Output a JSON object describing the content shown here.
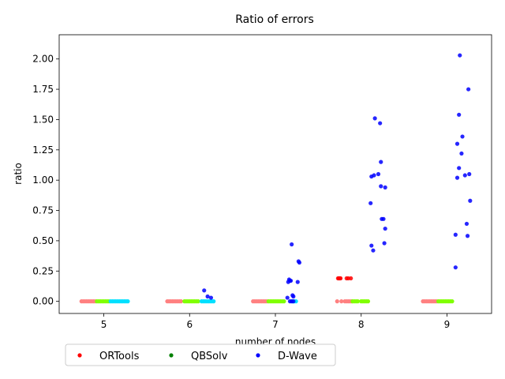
{
  "chart_data": {
    "type": "scatter",
    "title": "Ratio of errors",
    "xlabel": "number of nodes",
    "ylabel": "ratio",
    "xlim": [
      4.48,
      9.52
    ],
    "ylim": [
      -0.1,
      2.2
    ],
    "xticks": [
      5,
      6,
      7,
      8,
      9
    ],
    "yticks": [
      0.0,
      0.25,
      0.5,
      0.75,
      1.0,
      1.25,
      1.5,
      1.75,
      2.0
    ],
    "xtick_labels": [
      "5",
      "6",
      "7",
      "8",
      "9"
    ],
    "ytick_labels": [
      "0.00",
      "0.25",
      "0.50",
      "0.75",
      "1.00",
      "1.25",
      "1.50",
      "1.75",
      "2.00"
    ],
    "grid": false,
    "legend_position": "below",
    "series": [
      {
        "name": "ORTools",
        "color": "#ff0000",
        "points": [
          [
            7.73,
            0.19
          ],
          [
            7.74,
            0.19
          ],
          [
            7.75,
            0.19
          ],
          [
            7.76,
            0.19
          ],
          [
            7.83,
            0.19
          ],
          [
            7.85,
            0.19
          ],
          [
            7.88,
            0.19
          ]
        ]
      },
      {
        "name": "QBSolv",
        "color": "#008000",
        "points": []
      },
      {
        "name": "D-Wave",
        "color": "#0000ff",
        "points": [
          [
            6.17,
            0.09
          ],
          [
            6.21,
            0.04
          ],
          [
            6.25,
            0.03
          ],
          [
            7.14,
            0.03
          ],
          [
            7.15,
            0.16
          ],
          [
            7.16,
            0.18
          ],
          [
            7.17,
            0.17
          ],
          [
            7.18,
            0.17
          ],
          [
            7.19,
            0.47
          ],
          [
            7.2,
            0.05
          ],
          [
            7.21,
            0.04
          ],
          [
            7.26,
            0.16
          ],
          [
            7.27,
            0.33
          ],
          [
            7.28,
            0.32
          ],
          [
            7.17,
            0.0
          ],
          [
            7.19,
            0.0
          ],
          [
            7.21,
            0.0
          ],
          [
            8.11,
            0.81
          ],
          [
            8.12,
            0.46
          ],
          [
            8.12,
            1.03
          ],
          [
            8.14,
            0.42
          ],
          [
            8.15,
            1.04
          ],
          [
            8.16,
            1.51
          ],
          [
            8.2,
            1.05
          ],
          [
            8.22,
            1.47
          ],
          [
            8.23,
            1.15
          ],
          [
            8.23,
            0.95
          ],
          [
            8.24,
            0.68
          ],
          [
            8.26,
            0.68
          ],
          [
            8.27,
            0.48
          ],
          [
            8.28,
            0.6
          ],
          [
            8.28,
            0.94
          ],
          [
            9.1,
            0.55
          ],
          [
            9.1,
            0.28
          ],
          [
            9.12,
            1.02
          ],
          [
            9.12,
            1.3
          ],
          [
            9.14,
            1.54
          ],
          [
            9.14,
            1.1
          ],
          [
            9.15,
            2.03
          ],
          [
            9.17,
            1.22
          ],
          [
            9.18,
            1.36
          ],
          [
            9.21,
            1.04
          ],
          [
            9.23,
            0.64
          ],
          [
            9.24,
            0.54
          ],
          [
            9.25,
            1.75
          ],
          [
            9.26,
            1.05
          ],
          [
            9.27,
            0.83
          ]
        ]
      }
    ],
    "strips": [
      {
        "color": "#ff8080",
        "y": 0.0,
        "x": [
          4.74,
          4.76,
          4.78,
          4.8,
          4.82,
          4.84,
          4.86,
          4.88,
          4.9
        ]
      },
      {
        "color": "#80ff00",
        "y": 0.0,
        "x": [
          4.92,
          4.94,
          4.96,
          4.98,
          5.0,
          5.02,
          5.04,
          5.06
        ]
      },
      {
        "color": "#00e0ff",
        "y": 0.0,
        "x": [
          5.08,
          5.1,
          5.12,
          5.14,
          5.16,
          5.18,
          5.2,
          5.22,
          5.24,
          5.26,
          5.28
        ]
      },
      {
        "color": "#ff8080",
        "y": 0.0,
        "x": [
          5.74,
          5.76,
          5.78,
          5.8,
          5.82,
          5.84,
          5.86,
          5.88,
          5.9
        ]
      },
      {
        "color": "#80ff00",
        "y": 0.0,
        "x": [
          5.94,
          5.96,
          5.98,
          6.0,
          6.02,
          6.04,
          6.06,
          6.08,
          6.1
        ]
      },
      {
        "color": "#00e0ff",
        "y": 0.0,
        "x": [
          6.14,
          6.16,
          6.18,
          6.2,
          6.22,
          6.24,
          6.26,
          6.28
        ]
      },
      {
        "color": "#ff8080",
        "y": 0.0,
        "x": [
          6.74,
          6.76,
          6.78,
          6.8,
          6.82,
          6.84,
          6.86,
          6.88,
          6.9
        ]
      },
      {
        "color": "#80ff00",
        "y": 0.0,
        "x": [
          6.92,
          6.94,
          6.96,
          6.98,
          7.0,
          7.02,
          7.04,
          7.06,
          7.08,
          7.1
        ]
      },
      {
        "color": "#00e0ff",
        "y": 0.0,
        "x": [
          7.2,
          7.22,
          7.24
        ]
      },
      {
        "color": "#ff8080",
        "y": 0.0,
        "x": [
          7.72,
          7.77,
          7.81,
          7.83,
          7.85,
          7.87,
          7.89
        ]
      },
      {
        "color": "#80ff00",
        "y": 0.0,
        "x": [
          7.9,
          7.92,
          7.94,
          7.96,
          8.0,
          8.02,
          8.04,
          8.06,
          8.08
        ]
      },
      {
        "color": "#ff8080",
        "y": 0.0,
        "x": [
          8.72,
          8.74,
          8.76,
          8.78,
          8.8,
          8.82,
          8.84,
          8.86,
          8.88
        ]
      },
      {
        "color": "#80ff00",
        "y": 0.0,
        "x": [
          8.9,
          8.92,
          8.94,
          8.96,
          8.98,
          9.0,
          9.02,
          9.04,
          9.06
        ]
      }
    ]
  }
}
